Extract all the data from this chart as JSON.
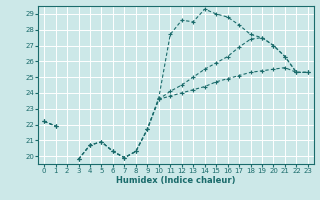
{
  "xlabel": "Humidex (Indice chaleur)",
  "background_color": "#cce8e8",
  "grid_color": "#ffffff",
  "line_color": "#1a6b6b",
  "xlim": [
    -0.5,
    23.5
  ],
  "ylim": [
    19.5,
    29.5
  ],
  "xticks": [
    0,
    1,
    2,
    3,
    4,
    5,
    6,
    7,
    8,
    9,
    10,
    11,
    12,
    13,
    14,
    15,
    16,
    17,
    18,
    19,
    20,
    21,
    22,
    23
  ],
  "yticks": [
    20,
    21,
    22,
    23,
    24,
    25,
    26,
    27,
    28,
    29
  ],
  "s1_y": [
    22.2,
    21.9,
    null,
    19.8,
    20.7,
    20.9,
    20.3,
    19.9,
    20.3,
    21.7,
    23.7,
    27.7,
    28.6,
    28.5,
    29.3,
    29.0,
    28.8,
    28.3,
    27.7,
    27.5,
    27.0,
    26.3,
    25.3,
    25.3
  ],
  "s2_y": [
    22.2,
    21.9,
    null,
    19.8,
    20.7,
    20.9,
    20.3,
    19.9,
    20.3,
    21.7,
    23.6,
    24.1,
    24.5,
    25.0,
    25.5,
    25.9,
    26.3,
    26.9,
    27.4,
    27.5,
    27.0,
    26.3,
    25.3,
    25.3
  ],
  "s3_y": [
    22.2,
    21.9,
    null,
    19.8,
    20.7,
    20.9,
    20.3,
    19.9,
    20.3,
    21.7,
    23.6,
    23.8,
    24.0,
    24.2,
    24.4,
    24.7,
    24.9,
    25.1,
    25.3,
    25.4,
    25.5,
    25.6,
    25.3,
    25.3
  ]
}
